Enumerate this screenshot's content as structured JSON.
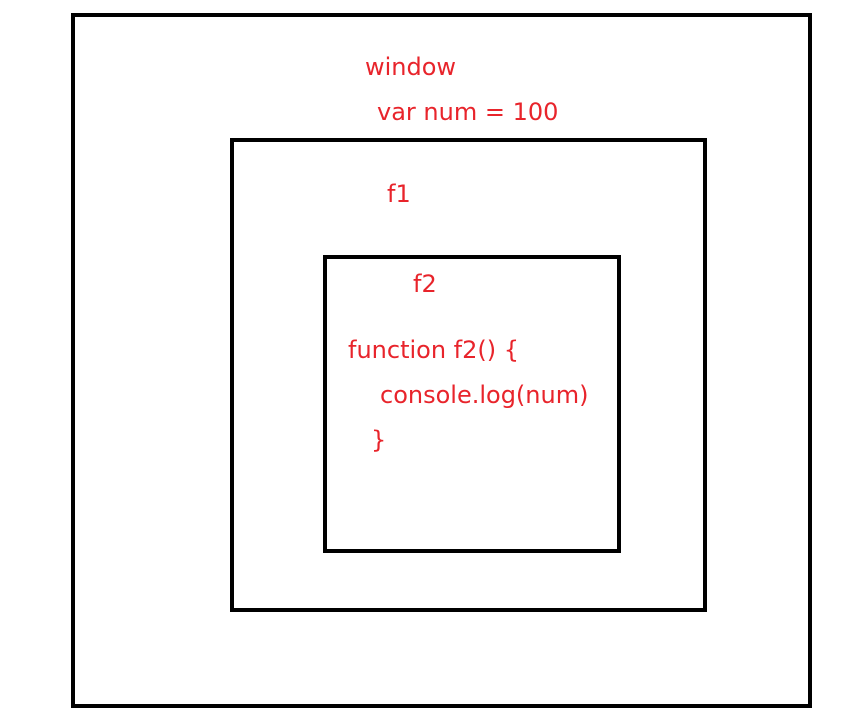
{
  "colors": {
    "border": "#000000",
    "text": "#e8242b",
    "background": "#ffffff"
  },
  "scopes": {
    "window": {
      "label": "window",
      "declaration": "var num = 100"
    },
    "f1": {
      "label": "f1"
    },
    "f2": {
      "label": "f2",
      "code": [
        "function f2() {",
        "console.log(num)",
        "}"
      ]
    }
  }
}
